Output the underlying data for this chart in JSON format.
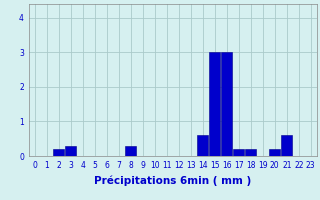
{
  "values": [
    0,
    0,
    0.2,
    0.3,
    0,
    0,
    0,
    0,
    0.3,
    0,
    0,
    0,
    0,
    0,
    0.6,
    3.0,
    3.0,
    0.2,
    0.2,
    0,
    0.2,
    0.6,
    0,
    0
  ],
  "xlabel": "Précipitations 6min ( mm )",
  "ylim": [
    0,
    4.4
  ],
  "yticks": [
    0,
    1,
    2,
    3,
    4
  ],
  "bar_color": "#0000cc",
  "bar_edge_color": "#00008b",
  "background_color": "#d6f0f0",
  "grid_color": "#aacaca",
  "axis_color": "#888888",
  "text_color": "#0000cc",
  "tick_fontsize": 5.5,
  "label_fontsize": 7.5,
  "fig_width": 3.2,
  "fig_height": 2.0,
  "dpi": 100
}
